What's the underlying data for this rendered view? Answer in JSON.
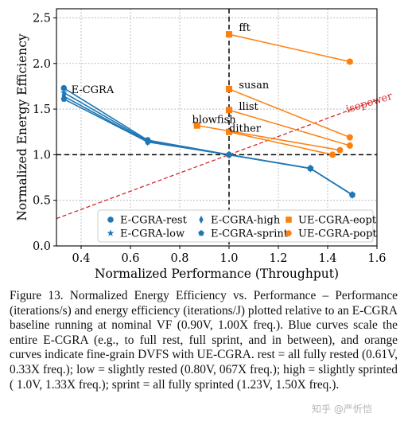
{
  "chart_data": {
    "type": "line",
    "xlabel": "Normalized Performance (Throughput)",
    "ylabel": "Normalized Energy Efficiency",
    "xlim": [
      0.3,
      1.6
    ],
    "ylim": [
      0.0,
      2.6
    ],
    "xticks": [
      "0.4",
      "0.6",
      "0.8",
      "1.0",
      "1.2",
      "1.4",
      "1.6"
    ],
    "yticks": [
      "0.0",
      "0.5",
      "1.0",
      "1.5",
      "2.0",
      "2.5"
    ],
    "grid": true,
    "legend_placement": "lower-right",
    "reference_lines": {
      "x": 1.0,
      "y": 1.0
    },
    "isopower": {
      "label": "isopower",
      "from": [
        0.3,
        0.3
      ],
      "to": [
        1.6,
        1.6
      ]
    },
    "blue_series": [
      {
        "name": "E-CGRA-rest",
        "marker": "circle",
        "x": [
          0.33,
          0.67,
          1.0,
          1.33,
          1.5
        ],
        "y": [
          1.73,
          1.16,
          1.0,
          0.85,
          0.56
        ]
      },
      {
        "name": "E-CGRA-low",
        "marker": "star",
        "x": [
          0.33,
          0.67,
          1.0,
          1.33,
          1.5
        ],
        "y": [
          1.68,
          1.15,
          1.0,
          0.85,
          0.56
        ]
      },
      {
        "name": "E-CGRA-high",
        "marker": "thin-diamond",
        "x": [
          0.33,
          0.67,
          1.0,
          1.33,
          1.5
        ],
        "y": [
          1.64,
          1.14,
          1.0,
          0.85,
          0.56
        ]
      },
      {
        "name": "E-CGRA-sprint",
        "marker": "pentagon",
        "x": [
          0.33,
          0.67,
          1.0,
          1.33,
          1.5
        ],
        "y": [
          1.61,
          1.14,
          1.0,
          0.85,
          0.56
        ]
      }
    ],
    "orange_series": [
      {
        "label": "fft",
        "eopt": [
          1.0,
          2.32
        ],
        "popt": [
          1.49,
          2.02
        ]
      },
      {
        "label": "susan",
        "eopt": [
          1.0,
          1.72
        ],
        "popt": [
          1.49,
          1.19
        ]
      },
      {
        "label": "llist",
        "eopt": [
          1.0,
          1.49
        ],
        "popt": [
          1.49,
          1.1
        ]
      },
      {
        "label": "blowfish",
        "eopt": [
          0.87,
          1.32
        ],
        "popt": [
          1.45,
          1.05
        ]
      },
      {
        "label": "dither",
        "eopt": [
          1.0,
          1.25
        ],
        "popt": [
          1.42,
          1.0
        ]
      }
    ],
    "annotations": [
      "E-CGRA",
      "fft",
      "susan",
      "llist",
      "blowfish",
      "dither",
      "isopower"
    ],
    "legend": [
      {
        "label": "E-CGRA-rest",
        "marker": "circle",
        "color": "#1f77b4"
      },
      {
        "label": "E-CGRA-high",
        "marker": "thin-diamond",
        "color": "#1f77b4"
      },
      {
        "label": "UE-CGRA-eopt",
        "marker": "square",
        "color": "#ff7f0e"
      },
      {
        "label": "E-CGRA-low",
        "marker": "star",
        "color": "#1f77b4"
      },
      {
        "label": "E-CGRA-sprint",
        "marker": "pentagon",
        "color": "#1f77b4"
      },
      {
        "label": "UE-CGRA-popt",
        "marker": "circle",
        "color": "#ff7f0e"
      }
    ],
    "colors": {
      "blue": "#1f77b4",
      "orange": "#ff7f0e",
      "isopower": "#d62728"
    }
  },
  "caption": "Figure 13. Normalized Energy Efficiency vs. Performance – Performance (iterations/s) and energy efficiency (iterations/J) plotted relative to an E-CGRA baseline running at nominal VF (0.90V, 1.00X freq.). Blue curves scale the entire E-CGRA (e.g., to full rest, full sprint, and in between), and orange curves indicate fine-grain DVFS with UE-CGRA. rest = all fully rested (0.61V, 0.33X freq.); low = slightly rested (0.80V, 067X freq.); high = slightly sprinted ( 1.0V, 1.33X freq.); sprint = all fully sprinted (1.23V, 1.50X freq.).",
  "watermark": "知乎 @严忻恺"
}
